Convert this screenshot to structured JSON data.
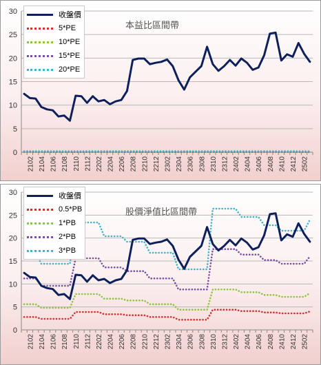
{
  "chart_data": [
    {
      "type": "line",
      "title": "本益比區間帶",
      "xlabel": "",
      "ylabel": "",
      "ylim": [
        0,
        30
      ],
      "yticks": [
        0,
        5,
        10,
        15,
        20,
        25,
        30
      ],
      "grid": true,
      "legend_position": "top-left",
      "x": [
        "2101",
        "2102",
        "2103",
        "2104",
        "2105",
        "2106",
        "2107",
        "2108",
        "2109",
        "2110",
        "2111",
        "2112",
        "2201",
        "2202",
        "2203",
        "2204",
        "2205",
        "2206",
        "2207",
        "2208",
        "2209",
        "2210",
        "2211",
        "2212",
        "2301",
        "2302",
        "2303",
        "2304",
        "2305",
        "2306",
        "2307",
        "2308",
        "2309",
        "2310",
        "2311",
        "2312",
        "2401",
        "2402",
        "2403",
        "2404",
        "2405",
        "2406",
        "2407",
        "2408",
        "2409",
        "2410",
        "2411",
        "2412",
        "2501",
        "2502",
        "2503"
      ],
      "xtick_labels": [
        "2102",
        "2104",
        "2106",
        "2108",
        "2110",
        "2112",
        "2202",
        "2204",
        "2206",
        "2208",
        "2210",
        "2212",
        "2302",
        "2304",
        "2306",
        "2308",
        "2310",
        "2312",
        "2402",
        "2404",
        "2406",
        "2408",
        "2410",
        "2412",
        "2502"
      ],
      "series": [
        {
          "name": "收盤價",
          "color": "#0d1f5c",
          "style": "solid",
          "values": [
            12.4,
            11.5,
            11.4,
            9.6,
            9.1,
            8.9,
            7.6,
            7.8,
            6.7,
            12.0,
            11.9,
            10.5,
            11.9,
            10.8,
            11.1,
            10.2,
            10.8,
            11.1,
            13.0,
            19.6,
            19.9,
            19.9,
            18.7,
            19.0,
            19.2,
            19.7,
            18.3,
            15.3,
            13.3,
            15.9,
            17.1,
            18.3,
            22.4,
            18.7,
            17.3,
            18.3,
            19.6,
            18.4,
            19.9,
            19.0,
            17.5,
            18.0,
            20.6,
            25.2,
            25.4,
            19.5,
            20.8,
            20.3,
            23.2,
            20.9,
            19.2
          ]
        },
        {
          "name": "5*PE",
          "color": "#d23232",
          "style": "dotted",
          "values": [
            0.05,
            0.05,
            0.05,
            0.05,
            0.05,
            0.05,
            0.05,
            0.05,
            0.05,
            0.05,
            0.05,
            0.05,
            0.05,
            0.05,
            0.05,
            0.05,
            0.05,
            0.05,
            0.05,
            0.05,
            0.05,
            0.05,
            0.05,
            0.05,
            0.05,
            0.05,
            0.05,
            0.05,
            0.05,
            0.05,
            0.05,
            0.05,
            0.05,
            0.05,
            0.05,
            0.05,
            0.05,
            0.05,
            0.05,
            0.05,
            0.05,
            0.05,
            0.05,
            0.05,
            0.05,
            0.05,
            0.05,
            0.05,
            0.05,
            0.05,
            0.05
          ]
        },
        {
          "name": "10*PE",
          "color": "#8cc63f",
          "style": "dotted",
          "values": [
            0.1,
            0.1,
            0.1,
            0.1,
            0.1,
            0.1,
            0.1,
            0.1,
            0.1,
            0.1,
            0.1,
            0.1,
            0.1,
            0.1,
            0.1,
            0.1,
            0.1,
            0.1,
            0.1,
            0.1,
            0.1,
            0.1,
            0.1,
            0.1,
            0.1,
            0.1,
            0.1,
            0.1,
            0.1,
            0.1,
            0.1,
            0.1,
            0.1,
            0.1,
            0.1,
            0.1,
            0.1,
            0.1,
            0.1,
            0.1,
            0.1,
            0.1,
            0.1,
            0.1,
            0.1,
            0.1,
            0.1,
            0.1,
            0.1,
            0.1,
            0.1
          ]
        },
        {
          "name": "15*PE",
          "color": "#7a4fa3",
          "style": "dotted",
          "values": [
            0.15,
            0.15,
            0.15,
            0.15,
            0.15,
            0.15,
            0.15,
            0.15,
            0.15,
            0.15,
            0.15,
            0.15,
            0.15,
            0.15,
            0.15,
            0.15,
            0.15,
            0.15,
            0.15,
            0.15,
            0.15,
            0.15,
            0.15,
            0.15,
            0.15,
            0.15,
            0.15,
            0.15,
            0.15,
            0.15,
            0.15,
            0.15,
            0.15,
            0.15,
            0.15,
            0.15,
            0.15,
            0.15,
            0.15,
            0.15,
            0.15,
            0.15,
            0.15,
            0.15,
            0.15,
            0.15,
            0.15,
            0.15,
            0.15,
            0.15,
            0.15
          ]
        },
        {
          "name": "20*PE",
          "color": "#3fb5c9",
          "style": "dotted",
          "values": [
            0.2,
            0.2,
            0.2,
            0.2,
            0.2,
            0.2,
            0.2,
            0.2,
            0.2,
            0.2,
            0.2,
            0.2,
            0.2,
            0.2,
            0.2,
            0.2,
            0.2,
            0.2,
            0.2,
            0.2,
            0.2,
            0.2,
            0.2,
            0.2,
            0.2,
            0.2,
            0.2,
            0.2,
            0.2,
            0.2,
            0.2,
            0.2,
            0.2,
            0.2,
            0.2,
            0.2,
            0.2,
            0.2,
            0.2,
            0.2,
            0.2,
            0.2,
            0.2,
            0.2,
            0.2,
            0.2,
            0.2,
            0.2,
            0.2,
            0.2,
            0.2
          ]
        }
      ]
    },
    {
      "type": "line",
      "title": "股價淨值比區間帶",
      "xlabel": "",
      "ylabel": "",
      "ylim": [
        0,
        30
      ],
      "yticks": [
        0,
        5,
        10,
        15,
        20,
        25,
        30
      ],
      "grid": true,
      "legend_position": "top-left",
      "x": [
        "2101",
        "2102",
        "2103",
        "2104",
        "2105",
        "2106",
        "2107",
        "2108",
        "2109",
        "2110",
        "2111",
        "2112",
        "2201",
        "2202",
        "2203",
        "2204",
        "2205",
        "2206",
        "2207",
        "2208",
        "2209",
        "2210",
        "2211",
        "2212",
        "2301",
        "2302",
        "2303",
        "2304",
        "2305",
        "2306",
        "2307",
        "2308",
        "2309",
        "2310",
        "2311",
        "2312",
        "2401",
        "2402",
        "2403",
        "2404",
        "2405",
        "2406",
        "2407",
        "2408",
        "2409",
        "2410",
        "2411",
        "2412",
        "2501",
        "2502",
        "2503"
      ],
      "xtick_labels": [
        "2102",
        "2104",
        "2106",
        "2108",
        "2110",
        "2112",
        "2202",
        "2204",
        "2206",
        "2208",
        "2210",
        "2212",
        "2302",
        "2304",
        "2306",
        "2308",
        "2310",
        "2312",
        "2402",
        "2404",
        "2406",
        "2408",
        "2410",
        "2412",
        "2502"
      ],
      "series": [
        {
          "name": "收盤價",
          "color": "#0d1f5c",
          "style": "solid",
          "values": [
            12.4,
            11.5,
            11.4,
            9.6,
            9.1,
            8.9,
            7.6,
            7.8,
            6.7,
            12.0,
            11.9,
            10.5,
            11.9,
            10.8,
            11.1,
            10.2,
            10.8,
            11.1,
            13.0,
            19.6,
            19.9,
            19.9,
            18.7,
            19.0,
            19.2,
            19.7,
            18.3,
            15.3,
            13.3,
            15.9,
            17.1,
            18.3,
            22.4,
            18.7,
            17.3,
            18.3,
            19.6,
            18.4,
            19.9,
            19.0,
            17.5,
            18.0,
            20.6,
            25.2,
            25.4,
            19.5,
            20.8,
            20.3,
            23.2,
            20.9,
            19.2
          ]
        },
        {
          "name": "0.5*PB",
          "color": "#d23232",
          "style": "dotted",
          "values": [
            2.8,
            2.8,
            2.8,
            2.4,
            2.4,
            2.4,
            2.4,
            2.4,
            2.4,
            3.9,
            3.9,
            3.9,
            3.9,
            3.9,
            3.4,
            3.4,
            3.4,
            3.4,
            3.2,
            3.2,
            3.2,
            3.2,
            2.8,
            2.8,
            2.8,
            2.8,
            2.8,
            2.2,
            2.2,
            2.2,
            2.2,
            2.2,
            2.2,
            4.4,
            4.4,
            4.4,
            4.4,
            4.4,
            4.1,
            4.1,
            4.1,
            4.1,
            3.8,
            3.8,
            3.8,
            3.6,
            3.6,
            3.6,
            3.6,
            3.6,
            4.0
          ]
        },
        {
          "name": "1*PB",
          "color": "#8cc63f",
          "style": "dotted",
          "values": [
            5.6,
            5.6,
            5.6,
            4.8,
            4.8,
            4.8,
            4.8,
            4.8,
            4.8,
            7.8,
            7.8,
            7.8,
            7.8,
            7.8,
            6.8,
            6.8,
            6.8,
            6.8,
            6.4,
            6.4,
            6.4,
            6.4,
            5.6,
            5.6,
            5.6,
            5.6,
            5.6,
            4.4,
            4.4,
            4.4,
            4.4,
            4.4,
            4.4,
            8.8,
            8.8,
            8.8,
            8.8,
            8.8,
            8.2,
            8.2,
            8.2,
            8.2,
            7.6,
            7.6,
            7.6,
            7.2,
            7.2,
            7.2,
            7.2,
            7.2,
            8.0
          ]
        },
        {
          "name": "2*PB",
          "color": "#7a4fa3",
          "style": "dotted",
          "values": [
            11.2,
            11.2,
            11.2,
            9.6,
            9.6,
            9.6,
            9.6,
            9.6,
            9.6,
            15.6,
            15.6,
            15.6,
            15.6,
            15.6,
            13.6,
            13.6,
            13.6,
            13.6,
            12.8,
            12.8,
            12.8,
            12.8,
            11.2,
            11.2,
            11.2,
            11.2,
            11.2,
            8.8,
            8.8,
            8.8,
            8.8,
            8.8,
            8.8,
            17.6,
            17.6,
            17.6,
            17.6,
            17.6,
            16.4,
            16.4,
            16.4,
            16.4,
            15.2,
            15.2,
            15.2,
            14.4,
            14.4,
            14.4,
            14.4,
            14.4,
            16.0
          ]
        },
        {
          "name": "3*PB",
          "color": "#3fb5c9",
          "style": "dotted",
          "values": [
            16.8,
            16.8,
            16.8,
            14.4,
            14.4,
            14.4,
            14.4,
            14.4,
            14.4,
            23.4,
            23.4,
            23.4,
            23.4,
            23.4,
            20.4,
            20.4,
            20.4,
            20.4,
            19.2,
            19.2,
            19.2,
            19.2,
            16.8,
            16.8,
            16.8,
            16.8,
            16.8,
            13.2,
            13.2,
            13.2,
            13.2,
            13.2,
            13.2,
            26.4,
            26.4,
            26.4,
            26.4,
            26.4,
            24.6,
            24.6,
            24.6,
            24.6,
            22.8,
            22.8,
            22.8,
            21.6,
            21.6,
            21.6,
            21.6,
            21.6,
            24.0
          ]
        }
      ]
    }
  ]
}
